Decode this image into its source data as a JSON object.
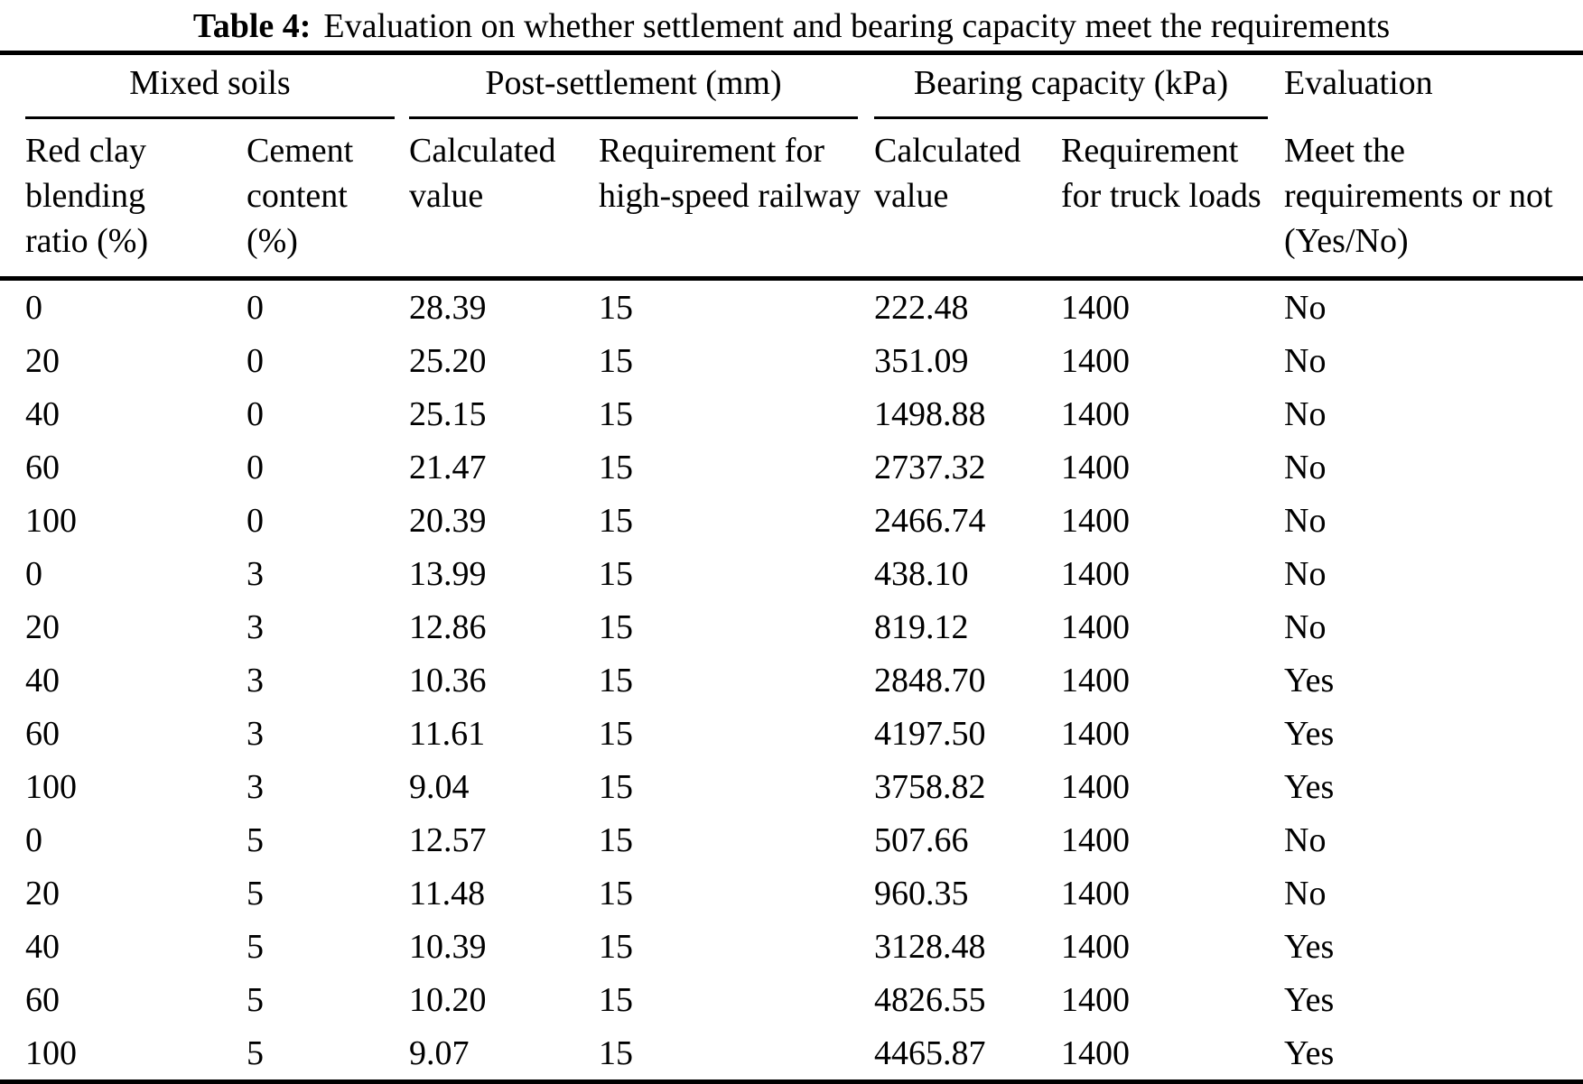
{
  "caption": {
    "label": "Table 4:",
    "text": "Evaluation on whether settlement and bearing capacity meet the requirements"
  },
  "table": {
    "groups": [
      {
        "label": "Mixed soils",
        "span": 2
      },
      {
        "label": "Post-settlement (mm)",
        "span": 2
      },
      {
        "label": "Bearing capacity (kPa)",
        "span": 2
      },
      {
        "label": "Evaluation",
        "span": 1
      }
    ],
    "columns": [
      "Red clay blending ratio (%)",
      "Cement content (%)",
      "Calculated value",
      "Requirement for high-speed railway",
      "Calculated value",
      "Requirement for truck loads",
      "Meet the requirements or not (Yes/No)"
    ],
    "rows": [
      [
        "0",
        "0",
        "28.39",
        "15",
        "222.48",
        "1400",
        "No"
      ],
      [
        "20",
        "0",
        "25.20",
        "15",
        "351.09",
        "1400",
        "No"
      ],
      [
        "40",
        "0",
        "25.15",
        "15",
        "1498.88",
        "1400",
        "No"
      ],
      [
        "60",
        "0",
        "21.47",
        "15",
        "2737.32",
        "1400",
        "No"
      ],
      [
        "100",
        "0",
        "20.39",
        "15",
        "2466.74",
        "1400",
        "No"
      ],
      [
        "0",
        "3",
        "13.99",
        "15",
        "438.10",
        "1400",
        "No"
      ],
      [
        "20",
        "3",
        "12.86",
        "15",
        "819.12",
        "1400",
        "No"
      ],
      [
        "40",
        "3",
        "10.36",
        "15",
        "2848.70",
        "1400",
        "Yes"
      ],
      [
        "60",
        "3",
        "11.61",
        "15",
        "4197.50",
        "1400",
        "Yes"
      ],
      [
        "100",
        "3",
        "9.04",
        "15",
        "3758.82",
        "1400",
        "Yes"
      ],
      [
        "0",
        "5",
        "12.57",
        "15",
        "507.66",
        "1400",
        "No"
      ],
      [
        "20",
        "5",
        "11.48",
        "15",
        "960.35",
        "1400",
        "No"
      ],
      [
        "40",
        "5",
        "10.39",
        "15",
        "3128.48",
        "1400",
        "Yes"
      ],
      [
        "60",
        "5",
        "10.20",
        "15",
        "4826.55",
        "1400",
        "Yes"
      ],
      [
        "100",
        "5",
        "9.07",
        "15",
        "4465.87",
        "1400",
        "Yes"
      ]
    ]
  },
  "colors": {
    "text": "#000000",
    "background": "#ffffff",
    "rule": "#000000"
  }
}
